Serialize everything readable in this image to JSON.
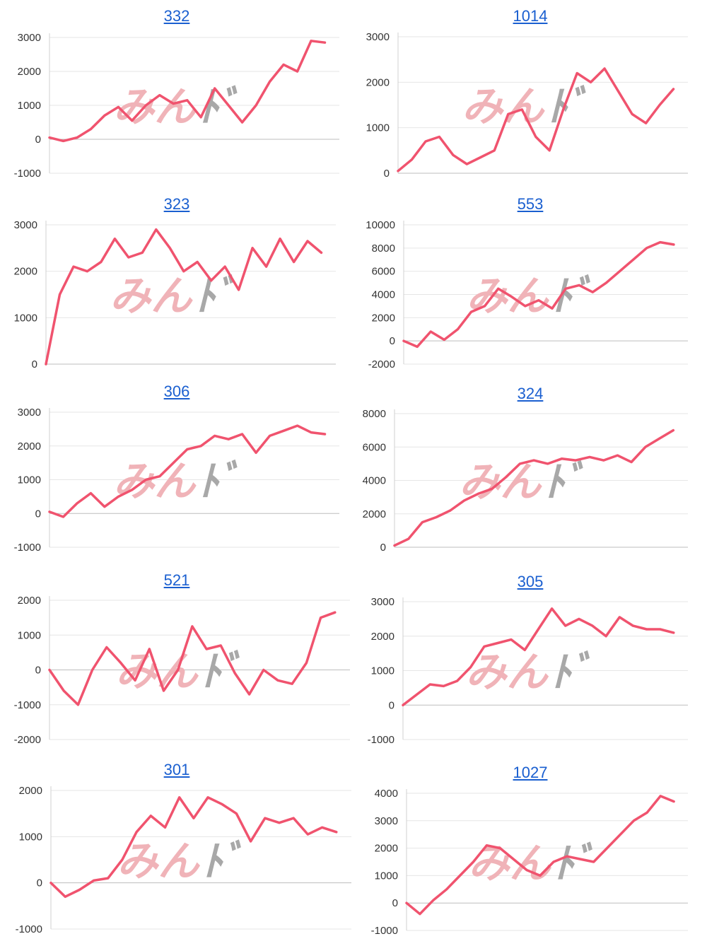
{
  "brand": {
    "line_color": "#f0536e",
    "link_color": "#1a5fd0",
    "watermark_a": "みん",
    "watermark_b": "ﾄﾞ"
  },
  "chart_data": [
    {
      "type": "line",
      "title": "332",
      "ylim": [
        -1000,
        3000
      ],
      "yticks": [
        -1000,
        0,
        1000,
        2000,
        3000
      ],
      "series": [
        {
          "values": [
            50,
            -50,
            50,
            300,
            700,
            950,
            550,
            1000,
            1300,
            1050,
            1150,
            650,
            1500,
            1000,
            500,
            1000,
            1700,
            2200,
            2000,
            2900,
            2850
          ]
        }
      ]
    },
    {
      "type": "line",
      "title": "1014",
      "ylim": [
        0,
        3000
      ],
      "yticks": [
        0,
        1000,
        2000,
        3000
      ],
      "series": [
        {
          "values": [
            50,
            300,
            700,
            800,
            400,
            200,
            350,
            500,
            1300,
            1400,
            800,
            500,
            1400,
            2200,
            2000,
            2300,
            1800,
            1300,
            1100,
            1500,
            1850
          ]
        }
      ]
    },
    {
      "type": "line",
      "title": "323",
      "ylim": [
        0,
        3000
      ],
      "yticks": [
        0,
        1000,
        2000,
        3000
      ],
      "series": [
        {
          "values": [
            0,
            1500,
            2100,
            2000,
            2200,
            2700,
            2300,
            2400,
            2900,
            2500,
            2000,
            2200,
            1800,
            2100,
            1600,
            2500,
            2100,
            2700,
            2200,
            2650,
            2400
          ]
        }
      ]
    },
    {
      "type": "line",
      "title": "553",
      "ylim": [
        -2000,
        10000
      ],
      "yticks": [
        -2000,
        0,
        2000,
        4000,
        6000,
        8000,
        10000
      ],
      "series": [
        {
          "values": [
            0,
            -500,
            800,
            100,
            1000,
            2500,
            3000,
            4500,
            3800,
            3000,
            3500,
            2800,
            4500,
            4800,
            4200,
            5000,
            6000,
            7000,
            8000,
            8500,
            8300
          ]
        }
      ]
    },
    {
      "type": "line",
      "title": "306",
      "ylim": [
        -1000,
        3000
      ],
      "yticks": [
        -1000,
        0,
        1000,
        2000,
        3000
      ],
      "series": [
        {
          "values": [
            50,
            -100,
            300,
            600,
            200,
            500,
            700,
            1000,
            1100,
            1500,
            1900,
            2000,
            2300,
            2200,
            2350,
            1800,
            2300,
            2450,
            2600,
            2400,
            2350
          ]
        }
      ]
    },
    {
      "type": "line",
      "title": "324",
      "ylim": [
        0,
        8000
      ],
      "yticks": [
        0,
        2000,
        4000,
        6000,
        8000
      ],
      "series": [
        {
          "values": [
            100,
            500,
            1500,
            1800,
            2200,
            2800,
            3200,
            3500,
            4200,
            5000,
            5200,
            5000,
            5300,
            5200,
            5400,
            5200,
            5500,
            5100,
            6000,
            6500,
            7000
          ]
        }
      ]
    },
    {
      "type": "line",
      "title": "521",
      "ylim": [
        -2000,
        2000
      ],
      "yticks": [
        -2000,
        -1000,
        0,
        1000,
        2000
      ],
      "series": [
        {
          "values": [
            0,
            -600,
            -1000,
            0,
            650,
            200,
            -300,
            600,
            -600,
            0,
            1250,
            600,
            700,
            -100,
            -700,
            0,
            -300,
            -400,
            200,
            1500,
            1650
          ]
        }
      ]
    },
    {
      "type": "line",
      "title": "305",
      "ylim": [
        -1000,
        3000
      ],
      "yticks": [
        -1000,
        0,
        1000,
        2000,
        3000
      ],
      "series": [
        {
          "values": [
            0,
            300,
            600,
            550,
            700,
            1100,
            1700,
            1800,
            1900,
            1600,
            2200,
            2800,
            2300,
            2500,
            2300,
            2000,
            2550,
            2300,
            2200,
            2200,
            2100
          ]
        }
      ]
    },
    {
      "type": "line",
      "title": "301",
      "ylim": [
        -1000,
        2000
      ],
      "yticks": [
        -1000,
        0,
        1000,
        2000
      ],
      "series": [
        {
          "values": [
            0,
            -300,
            -150,
            50,
            100,
            500,
            1100,
            1450,
            1200,
            1850,
            1400,
            1850,
            1700,
            1500,
            900,
            1400,
            1300,
            1400,
            1050,
            1200,
            1100
          ]
        }
      ]
    },
    {
      "type": "line",
      "title": "1027",
      "ylim": [
        -1000,
        4000
      ],
      "yticks": [
        -1000,
        0,
        1000,
        2000,
        3000,
        4000
      ],
      "series": [
        {
          "values": [
            0,
            -400,
            100,
            500,
            1000,
            1500,
            2100,
            2000,
            1600,
            1200,
            1000,
            1500,
            1700,
            1600,
            1500,
            2000,
            2500,
            3000,
            3300,
            3900,
            3700
          ]
        }
      ]
    }
  ]
}
